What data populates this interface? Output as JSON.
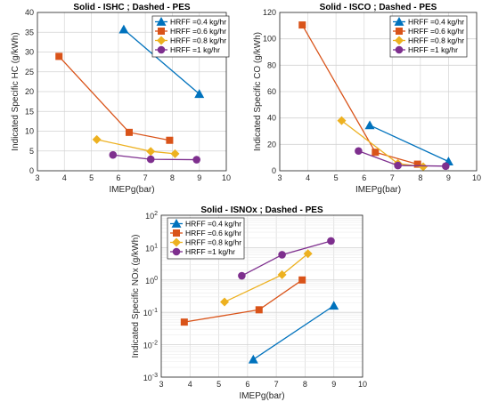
{
  "chart_data": [
    {
      "type": "line",
      "title": "Solid - ISHC ; Dashed - PES",
      "xlabel": "IMEPg(bar)",
      "ylabel": "Indicated Specific HC (g/kWh)",
      "xlim": [
        3,
        10
      ],
      "ylim": [
        0,
        40
      ],
      "yscale": "linear",
      "xticks": [
        3,
        4,
        5,
        6,
        7,
        8,
        9,
        10
      ],
      "yticks": [
        0,
        5,
        10,
        15,
        20,
        25,
        30,
        35,
        40
      ],
      "grid": true,
      "legend_position": "top-right",
      "series": [
        {
          "name": "HRFF =0.4 kg/hr",
          "color": "#0072BD",
          "marker": "triangle",
          "x": [
            6.2,
            9.0
          ],
          "y": [
            35.7,
            19.4
          ]
        },
        {
          "name": "HRFF =0.6 kg/hr",
          "color": "#D95319",
          "marker": "square",
          "x": [
            3.8,
            6.4,
            7.9
          ],
          "y": [
            28.9,
            9.7,
            7.7
          ]
        },
        {
          "name": "HRFF =0.8 kg/hr",
          "color": "#EDB120",
          "marker": "diamond",
          "x": [
            5.2,
            7.2,
            8.1
          ],
          "y": [
            7.9,
            4.9,
            4.3
          ]
        },
        {
          "name": "HRFF =1 kg/hr",
          "color": "#7E2F8E",
          "marker": "circle",
          "x": [
            5.8,
            7.2,
            8.9
          ],
          "y": [
            4.0,
            2.9,
            2.8
          ]
        }
      ]
    },
    {
      "type": "line",
      "title": "Solid - ISCO ; Dashed - PES",
      "xlabel": "IMEPg(bar)",
      "ylabel": "Indicated Specific CO (g/kWh)",
      "xlim": [
        3,
        10
      ],
      "ylim": [
        0,
        120
      ],
      "yscale": "linear",
      "xticks": [
        3,
        4,
        5,
        6,
        7,
        8,
        9,
        10
      ],
      "yticks": [
        0,
        20,
        40,
        60,
        80,
        100,
        120
      ],
      "grid": true,
      "legend_position": "top-right",
      "series": [
        {
          "name": "HRFF =0.4 kg/hr",
          "color": "#0072BD",
          "marker": "triangle",
          "x": [
            6.2,
            9.0
          ],
          "y": [
            34.5,
            7.0
          ]
        },
        {
          "name": "HRFF =0.6 kg/hr",
          "color": "#D95319",
          "marker": "square",
          "x": [
            3.8,
            6.4,
            7.9
          ],
          "y": [
            110.5,
            14.0,
            5.0
          ]
        },
        {
          "name": "HRFF =0.8 kg/hr",
          "color": "#EDB120",
          "marker": "diamond",
          "x": [
            5.2,
            7.2,
            8.1
          ],
          "y": [
            38.0,
            5.5,
            3.0
          ]
        },
        {
          "name": "HRFF =1 kg/hr",
          "color": "#7E2F8E",
          "marker": "circle",
          "x": [
            5.8,
            7.2,
            8.9
          ],
          "y": [
            15.0,
            4.0,
            3.5
          ]
        }
      ]
    },
    {
      "type": "line",
      "title": "Solid - ISNOx ; Dashed - PES",
      "xlabel": "IMEPg(bar)",
      "ylabel": "Indicated Specific NOx (g/kWh)",
      "xlim": [
        3,
        10
      ],
      "ylim": [
        0.001,
        100
      ],
      "yscale": "log",
      "xticks": [
        3,
        4,
        5,
        6,
        7,
        8,
        9,
        10
      ],
      "yticks": [
        0.001,
        0.01,
        0.1,
        1,
        10,
        100
      ],
      "ytick_labels": [
        "10^-3",
        "10^-2",
        "10^-1",
        "10^0",
        "10^1",
        "10^2"
      ],
      "grid": true,
      "legend_position": "top-left",
      "series": [
        {
          "name": "HRFF =0.4 kg/hr",
          "color": "#0072BD",
          "marker": "triangle",
          "x": [
            6.2,
            9.0
          ],
          "y": [
            0.0035,
            0.16
          ]
        },
        {
          "name": "HRFF =0.6 kg/hr",
          "color": "#D95319",
          "marker": "square",
          "x": [
            3.8,
            6.4,
            7.9
          ],
          "y": [
            0.05,
            0.12,
            1.0
          ]
        },
        {
          "name": "HRFF =0.8 kg/hr",
          "color": "#EDB120",
          "marker": "diamond",
          "x": [
            5.2,
            7.2,
            8.1
          ],
          "y": [
            0.21,
            1.45,
            6.5
          ]
        },
        {
          "name": "HRFF =1 kg/hr",
          "color": "#7E2F8E",
          "marker": "circle",
          "x": [
            5.8,
            7.2,
            8.9
          ],
          "y": [
            1.35,
            6.0,
            16.0
          ]
        }
      ]
    }
  ]
}
